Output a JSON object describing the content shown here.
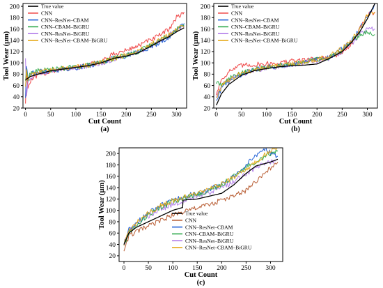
{
  "series_names": [
    "True value",
    "CNN",
    "CNN–ResNet–CBAM",
    "CNN–CBAM–BiGRU",
    "CNN–ResNet–BiGRU",
    "CNN–ResNet–CBAM–BiGRU"
  ],
  "colors": {
    "true_value": "#000000",
    "cnn_ab": "#ee3b3b",
    "cnn_c": "#b5562a",
    "resnet_cbam": "#1f5fd6",
    "cbam_bigru": "#2ca84a",
    "resnet_bigru": "#b07ae8",
    "resnet_cbam_bigru": "#e6a817"
  },
  "chart_data": [
    {
      "type": "line",
      "panel": "(a)",
      "xlabel": "Cut Count",
      "ylabel": "Tool Wear (μm)",
      "xlim": [
        -5,
        320
      ],
      "ylim": [
        20,
        205
      ],
      "xticks": [
        0,
        50,
        100,
        150,
        200,
        250,
        300
      ],
      "yticks": [
        20,
        40,
        60,
        80,
        100,
        120,
        140,
        160,
        180,
        200
      ],
      "legend": "top-left",
      "grid": false,
      "series": [
        {
          "name": "True value",
          "x": [
            0,
            5,
            10,
            25,
            50,
            75,
            100,
            125,
            150,
            175,
            200,
            225,
            250,
            270,
            285,
            300,
            315
          ],
          "values": [
            70,
            73,
            76,
            80,
            86,
            89,
            92,
            95,
            100,
            108,
            112,
            118,
            130,
            140,
            146,
            155,
            162
          ]
        },
        {
          "name": "CNN",
          "x": [
            0,
            2,
            5,
            10,
            25,
            50,
            75,
            100,
            125,
            150,
            175,
            200,
            225,
            250,
            270,
            285,
            300,
            315
          ],
          "values": [
            30,
            88,
            55,
            68,
            78,
            85,
            88,
            93,
            96,
            103,
            115,
            122,
            131,
            141,
            150,
            160,
            180,
            190
          ]
        },
        {
          "name": "CNN–ResNet–CBAM",
          "x": [
            0,
            2,
            5,
            10,
            25,
            50,
            75,
            100,
            125,
            150,
            175,
            200,
            225,
            250,
            270,
            285,
            300,
            315
          ],
          "values": [
            40,
            95,
            70,
            80,
            84,
            86,
            89,
            91,
            95,
            100,
            108,
            113,
            120,
            128,
            138,
            146,
            158,
            170
          ]
        },
        {
          "name": "CNN–CBAM–BiGRU",
          "x": [
            0,
            2,
            5,
            10,
            25,
            50,
            75,
            100,
            125,
            150,
            175,
            200,
            225,
            250,
            270,
            285,
            300,
            315
          ],
          "values": [
            70,
            85,
            72,
            82,
            86,
            88,
            90,
            93,
            96,
            101,
            108,
            114,
            120,
            132,
            142,
            150,
            160,
            165
          ]
        },
        {
          "name": "CNN–ResNet–BiGRU",
          "x": [
            0,
            2,
            5,
            10,
            25,
            50,
            75,
            100,
            125,
            150,
            175,
            200,
            225,
            250,
            270,
            285,
            300,
            315
          ],
          "values": [
            110,
            40,
            68,
            75,
            80,
            85,
            88,
            92,
            95,
            99,
            107,
            113,
            118,
            130,
            140,
            148,
            160,
            163
          ]
        },
        {
          "name": "CNN–ResNet–CBAM–BiGRU",
          "x": [
            0,
            2,
            5,
            10,
            25,
            50,
            75,
            100,
            125,
            150,
            175,
            200,
            225,
            250,
            270,
            285,
            300,
            315
          ],
          "values": [
            60,
            90,
            70,
            80,
            84,
            87,
            90,
            93,
            96,
            101,
            108,
            114,
            122,
            133,
            143,
            150,
            158,
            165
          ]
        }
      ]
    },
    {
      "type": "line",
      "panel": "(b)",
      "xlabel": "Cut Count",
      "ylabel": "Tool Wear (μm)",
      "xlim": [
        -5,
        320
      ],
      "ylim": [
        20,
        205
      ],
      "xticks": [
        0,
        50,
        100,
        150,
        200,
        250,
        300
      ],
      "yticks": [
        20,
        40,
        60,
        80,
        100,
        120,
        140,
        160,
        180,
        200
      ],
      "legend": "top-left",
      "grid": false,
      "series": [
        {
          "name": "True value",
          "x": [
            0,
            10,
            25,
            50,
            75,
            100,
            125,
            150,
            175,
            200,
            225,
            250,
            270,
            285,
            300,
            315
          ],
          "values": [
            25,
            45,
            62,
            78,
            86,
            90,
            93,
            95,
            96,
            98,
            108,
            120,
            138,
            155,
            178,
            205
          ]
        },
        {
          "name": "CNN",
          "x": [
            0,
            10,
            25,
            50,
            75,
            100,
            125,
            150,
            175,
            200,
            225,
            250,
            270,
            285,
            300,
            315
          ],
          "values": [
            45,
            70,
            85,
            95,
            97,
            98,
            100,
            103,
            105,
            107,
            110,
            118,
            135,
            160,
            185,
            190
          ]
        },
        {
          "name": "CNN–ResNet–CBAM",
          "x": [
            0,
            10,
            25,
            50,
            75,
            100,
            125,
            150,
            175,
            200,
            225,
            250,
            270,
            285,
            300,
            315
          ],
          "values": [
            35,
            55,
            68,
            80,
            88,
            92,
            95,
            98,
            102,
            106,
            110,
            125,
            140,
            160,
            180,
            205
          ]
        },
        {
          "name": "CNN–CBAM–BiGRU",
          "x": [
            0,
            10,
            25,
            50,
            75,
            100,
            125,
            150,
            175,
            200,
            225,
            250,
            270,
            285,
            300,
            315
          ],
          "values": [
            65,
            62,
            72,
            82,
            88,
            92,
            95,
            98,
            102,
            106,
            110,
            122,
            138,
            150,
            155,
            150
          ]
        },
        {
          "name": "CNN–ResNet–BiGRU",
          "x": [
            0,
            10,
            25,
            50,
            75,
            100,
            125,
            150,
            175,
            200,
            225,
            250,
            270,
            285,
            300,
            315
          ],
          "values": [
            40,
            60,
            70,
            80,
            87,
            91,
            94,
            97,
            100,
            104,
            108,
            120,
            135,
            150,
            160,
            160
          ]
        },
        {
          "name": "CNN–ResNet–CBAM–BiGRU",
          "x": [
            0,
            10,
            25,
            50,
            75,
            100,
            125,
            150,
            175,
            200,
            225,
            250,
            270,
            285,
            300,
            315
          ],
          "values": [
            40,
            58,
            70,
            82,
            88,
            92,
            95,
            98,
            102,
            106,
            112,
            125,
            142,
            160,
            185,
            190
          ]
        }
      ]
    },
    {
      "type": "line",
      "panel": "(c)",
      "xlabel": "Cut Count",
      "ylabel": "Tool Wear (μm)",
      "xlim": [
        -10,
        325
      ],
      "ylim": [
        10,
        210
      ],
      "xticks": [
        0,
        50,
        100,
        150,
        200,
        250,
        300
      ],
      "yticks": [
        20,
        40,
        60,
        80,
        100,
        120,
        140,
        160,
        180,
        200
      ],
      "legend": "bottom-right",
      "grid": false,
      "series": [
        {
          "name": "True value",
          "x": [
            0,
            10,
            25,
            50,
            75,
            100,
            120,
            121,
            150,
            175,
            200,
            225,
            250,
            270,
            300,
            315
          ],
          "values": [
            40,
            60,
            70,
            80,
            90,
            100,
            105,
            118,
            120,
            125,
            130,
            145,
            165,
            178,
            185,
            190
          ]
        },
        {
          "name": "CNN",
          "x": [
            0,
            10,
            25,
            50,
            75,
            100,
            125,
            150,
            175,
            200,
            225,
            250,
            270,
            300,
            315
          ],
          "values": [
            30,
            55,
            62,
            72,
            82,
            92,
            98,
            105,
            110,
            118,
            125,
            135,
            150,
            175,
            185
          ]
        },
        {
          "name": "CNN–ResNet–CBAM",
          "x": [
            0,
            10,
            25,
            50,
            75,
            100,
            125,
            150,
            175,
            200,
            225,
            250,
            270,
            290,
            300,
            315
          ],
          "values": [
            40,
            65,
            78,
            95,
            108,
            118,
            125,
            130,
            138,
            145,
            160,
            180,
            195,
            210,
            200,
            195
          ]
        },
        {
          "name": "CNN–CBAM–BiGRU",
          "x": [
            0,
            10,
            25,
            50,
            75,
            100,
            125,
            150,
            175,
            200,
            225,
            250,
            270,
            300,
            315
          ],
          "values": [
            40,
            60,
            75,
            92,
            105,
            115,
            123,
            128,
            135,
            145,
            160,
            175,
            185,
            200,
            205
          ]
        },
        {
          "name": "CNN–ResNet–BiGRU",
          "x": [
            0,
            10,
            25,
            50,
            75,
            100,
            125,
            150,
            175,
            200,
            225,
            250,
            270,
            300,
            315
          ],
          "values": [
            40,
            62,
            75,
            90,
            102,
            110,
            118,
            125,
            132,
            140,
            150,
            165,
            175,
            185,
            190
          ]
        },
        {
          "name": "CNN–ResNet–CBAM–BiGRU",
          "x": [
            0,
            10,
            25,
            50,
            75,
            100,
            125,
            150,
            175,
            200,
            225,
            250,
            270,
            300,
            315
          ],
          "values": [
            40,
            62,
            78,
            95,
            108,
            117,
            124,
            130,
            137,
            146,
            158,
            172,
            185,
            205,
            210
          ]
        }
      ]
    }
  ]
}
